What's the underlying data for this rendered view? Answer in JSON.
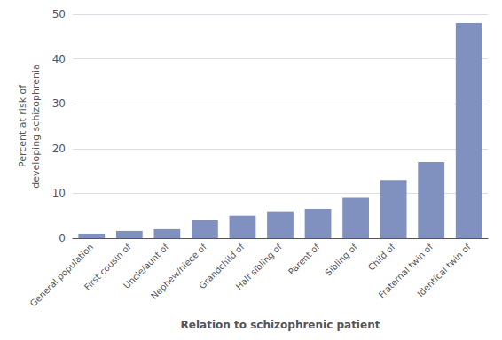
{
  "chart_data": {
    "type": "bar",
    "categories": [
      "General population",
      "First cousin of",
      "Uncle/aunt of",
      "Nephew/niece of",
      "Grandchild of",
      "Half sibling of",
      "Parent of",
      "Sibling of",
      "Child of",
      "Fraternal twin of",
      "Identical twin of"
    ],
    "values": [
      1.0,
      1.6,
      2.0,
      4.0,
      5.0,
      6.0,
      6.5,
      9.0,
      13.0,
      17.0,
      48.0
    ],
    "color": "#8090bf",
    "xlabel": "Relation to schizophrenic patient",
    "ylabel": "Percent at risk of\ndeveloping schizophrenia",
    "ylim": [
      0,
      50
    ],
    "yticks": [
      0,
      10,
      20,
      30,
      40,
      50
    ],
    "grid": true
  }
}
